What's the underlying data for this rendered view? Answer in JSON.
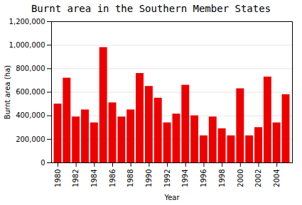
{
  "chart_data": {
    "type": "bar",
    "title": "Burnt area in the Southern Member States",
    "xlabel": "Year",
    "ylabel": "Burnt area (ha)",
    "x": [
      1980,
      1981,
      1982,
      1983,
      1984,
      1985,
      1986,
      1987,
      1988,
      1989,
      1990,
      1991,
      1992,
      1993,
      1994,
      1995,
      1996,
      1997,
      1998,
      1999,
      2000,
      2001,
      2002,
      2003,
      2004,
      2005
    ],
    "values": [
      500000,
      720000,
      390000,
      450000,
      340000,
      980000,
      510000,
      390000,
      450000,
      760000,
      650000,
      550000,
      340000,
      415000,
      660000,
      400000,
      230000,
      390000,
      290000,
      230000,
      630000,
      230000,
      300000,
      730000,
      340000,
      580000
    ],
    "color": "#ee0000",
    "xlim": [
      1979.3,
      2005.7
    ],
    "xticks": [
      1980,
      1982,
      1984,
      1986,
      1988,
      1990,
      1992,
      1994,
      1996,
      1998,
      2000,
      2002,
      2004
    ],
    "ylim": [
      0,
      1200000
    ],
    "yticks": [
      0,
      {
        "value": 200000,
        "label": "200,000"
      },
      {
        "value": 400000,
        "label": "400,000"
      },
      {
        "value": 600000,
        "label": "600,000"
      },
      {
        "value": 800000,
        "label": "800,000"
      },
      {
        "value": 1000000,
        "label": "1,000,000"
      },
      {
        "value": 1200000,
        "label": "1,200,000"
      }
    ],
    "grid": true
  }
}
